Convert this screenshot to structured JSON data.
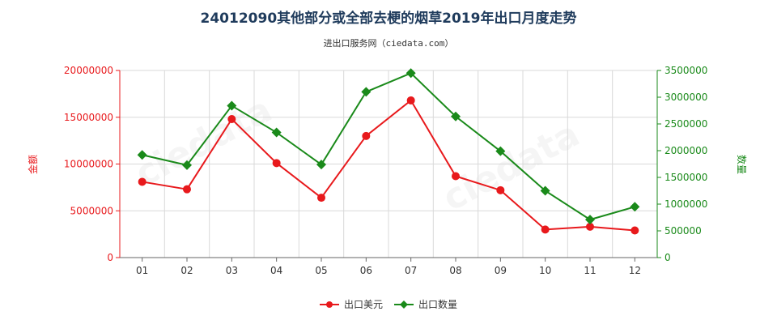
{
  "chart_data": {
    "type": "line",
    "title": "24012090其他部分或全部去梗的烟草2019年出口月度走势",
    "subtitle": "进出口服务网（ciedata.com）",
    "categories": [
      "01",
      "02",
      "03",
      "04",
      "05",
      "06",
      "07",
      "08",
      "09",
      "10",
      "11",
      "12"
    ],
    "ylabel_left": "金额",
    "ylabel_right": "数量",
    "ylim_left": [
      0,
      20000000
    ],
    "ylim_right": [
      0,
      3500000
    ],
    "left_ticks": [
      "0",
      "5000000",
      "10000000",
      "15000000",
      "20000000"
    ],
    "right_ticks": [
      "0",
      "500000",
      "1000000",
      "1500000",
      "2000000",
      "2500000",
      "3000000",
      "3500000"
    ],
    "grid": true,
    "legend_position": "bottom",
    "series": [
      {
        "name": "出口美元",
        "axis": "left",
        "color": "#e8191c",
        "values": [
          8100000,
          7300000,
          14800000,
          10100000,
          6400000,
          13000000,
          16800000,
          8700000,
          7200000,
          3000000,
          3300000,
          2900000
        ]
      },
      {
        "name": "出口数量",
        "axis": "right",
        "color": "#1a8a1a",
        "values": [
          1920000,
          1730000,
          2840000,
          2340000,
          1740000,
          3100000,
          3450000,
          2640000,
          1990000,
          1250000,
          710000,
          950000
        ]
      }
    ],
    "left_axis_color": "#e8191c",
    "right_axis_color": "#1a8a1a"
  }
}
